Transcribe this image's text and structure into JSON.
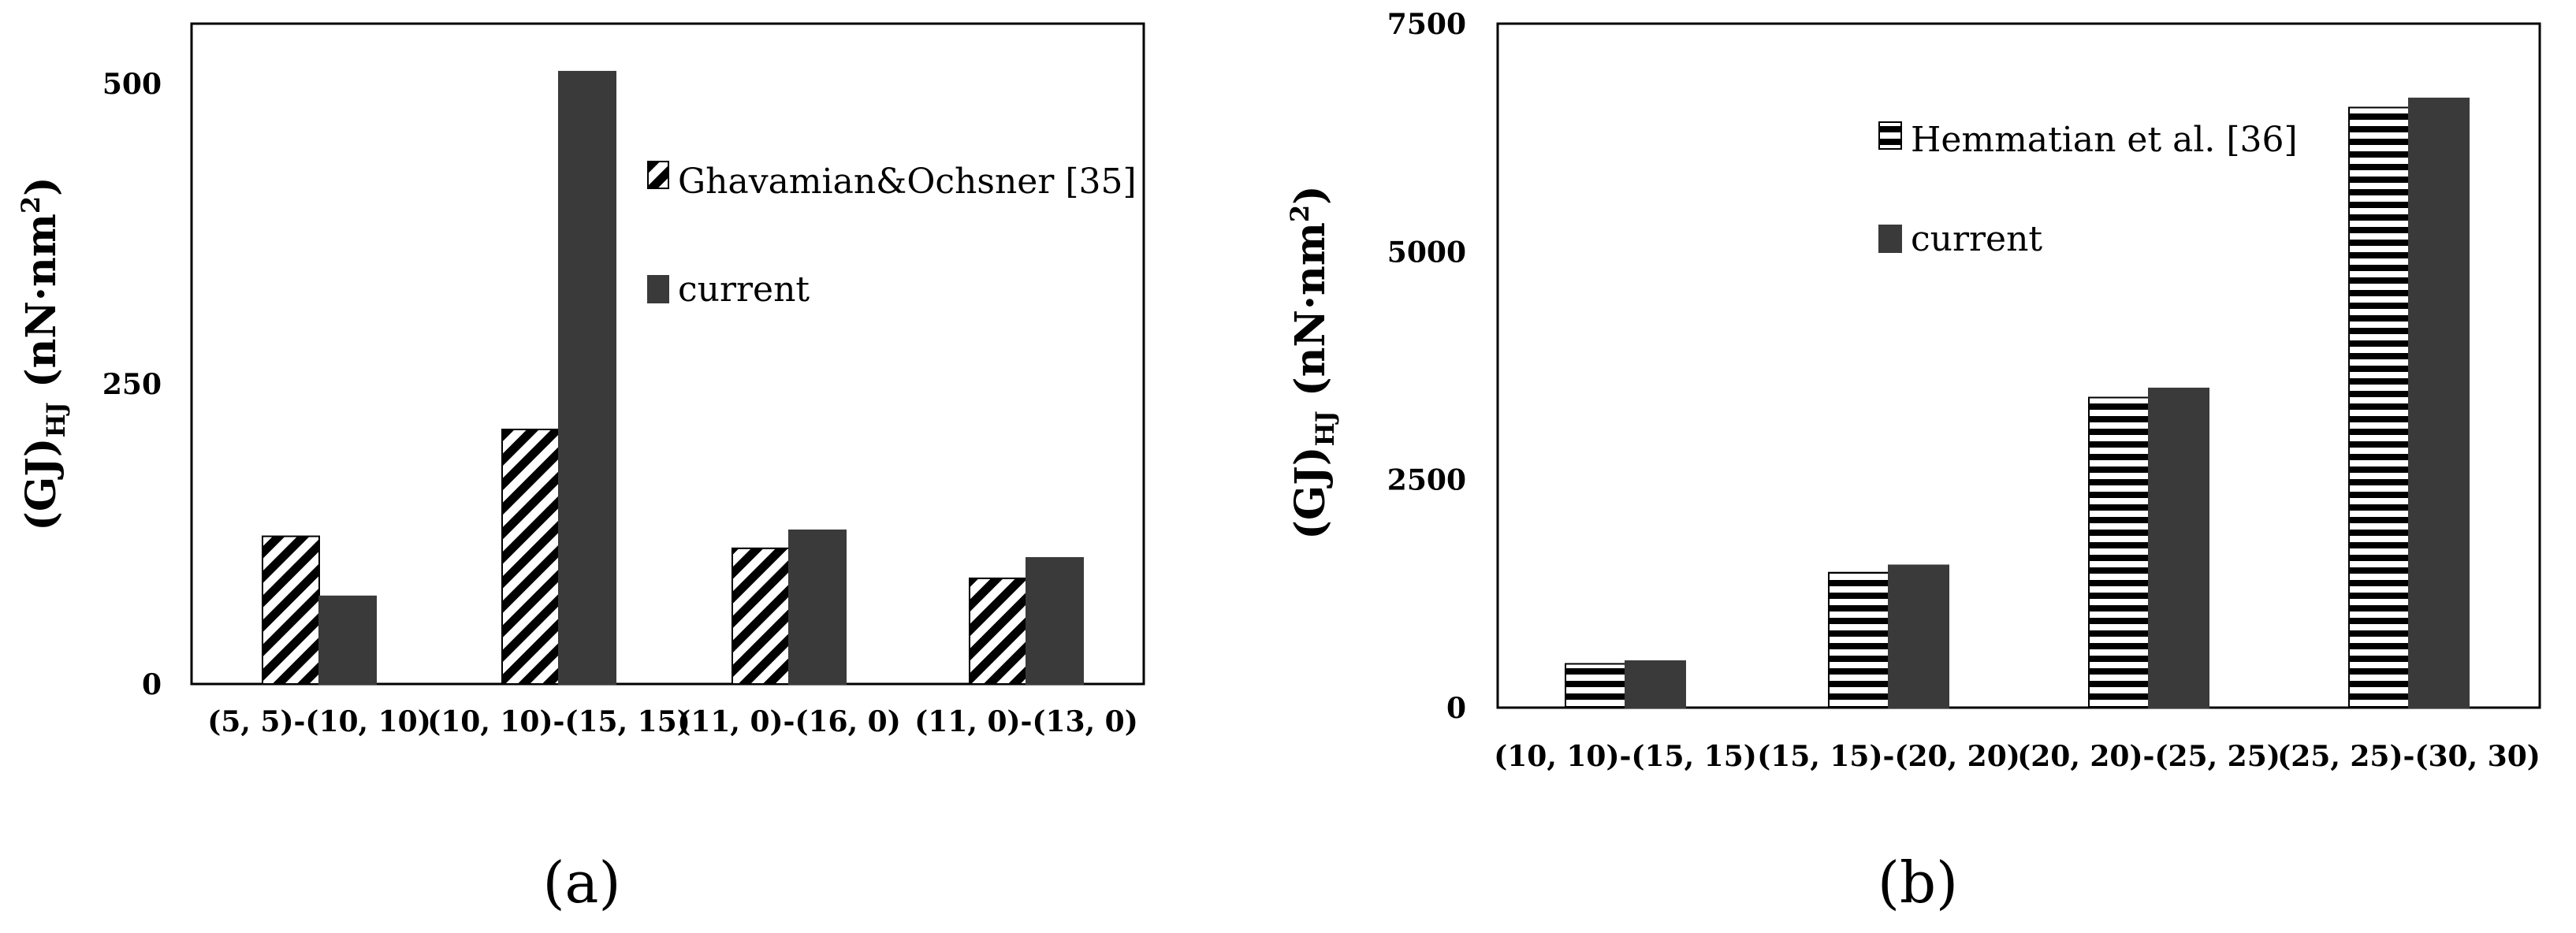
{
  "chart_data": [
    {
      "type": "bar",
      "panel_label": "(a)",
      "ylabel": "(GJ)",
      "ylabel_sub": "HJ",
      "ylabel_unit": " (nN·nm",
      "ylabel_sup": "2",
      "ylabel_close": ")",
      "ylim": [
        0,
        550
      ],
      "yticks": [
        0,
        250,
        500
      ],
      "categories": [
        "(5, 5)-(10, 10)",
        "(10, 10)-(15, 15)",
        "(11, 0)-(16, 0)",
        "(11, 0)-(13, 0)"
      ],
      "series": [
        {
          "name": "Ghavamian&Ochsner [35]",
          "pattern": "diagonal",
          "values": [
            123,
            212,
            113,
            88
          ]
        },
        {
          "name": "current",
          "pattern": "solid",
          "values": [
            73,
            510,
            128,
            105
          ]
        }
      ],
      "legend_position": "top-right",
      "grid": false
    },
    {
      "type": "bar",
      "panel_label": "(b)",
      "ylabel": "(GJ)",
      "ylabel_sub": "HJ",
      "ylabel_unit": " (nN·nm",
      "ylabel_sup": "2",
      "ylabel_close": ")",
      "ylim": [
        0,
        7500
      ],
      "yticks": [
        0,
        2500,
        5000,
        7500
      ],
      "categories": [
        "(10, 10)-(15, 15)",
        "(15, 15)-(20, 20)",
        "(20, 20)-(25, 25)",
        "(25, 25)-(30, 30)"
      ],
      "series": [
        {
          "name": "Hemmatian et al. [36]",
          "pattern": "horizontal",
          "values": [
            480,
            1480,
            3400,
            6580
          ]
        },
        {
          "name": "current",
          "pattern": "solid",
          "values": [
            510,
            1560,
            3500,
            6680
          ]
        }
      ],
      "legend_position": "top-left",
      "grid": false
    }
  ],
  "colors": {
    "bar_dark": "#3a3a3a",
    "axis": "#000000"
  }
}
